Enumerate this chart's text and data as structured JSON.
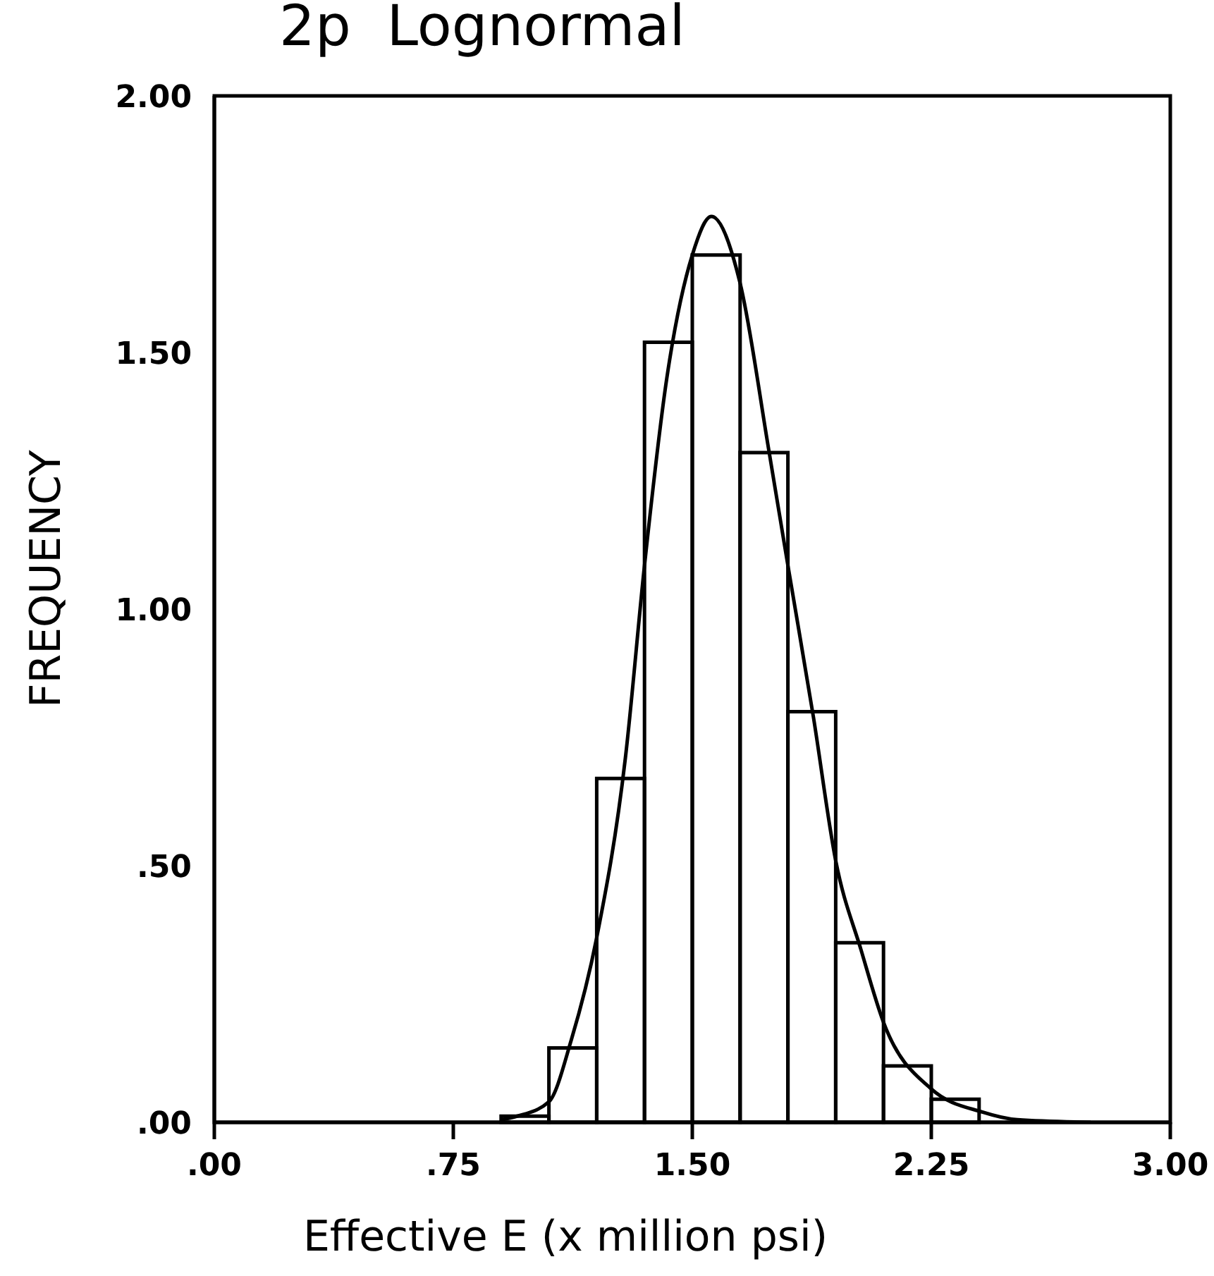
{
  "chart_data": {
    "type": "histogram",
    "title": "2p  Lognormal",
    "xlabel": "Effective  E  (x  million  psi)",
    "ylabel": "FREQUENCY",
    "bins": [
      0.9,
      1.05,
      1.2,
      1.35,
      1.5,
      1.65,
      1.8,
      1.95,
      2.1,
      2.25,
      2.4
    ],
    "values": [
      0.012,
      0.145,
      0.67,
      1.52,
      1.69,
      1.305,
      0.8,
      0.35,
      0.11,
      0.045
    ],
    "color": "#000000",
    "series": [
      {
        "type": "line",
        "color": "#000000",
        "x": [
          0.9,
          0.95,
          1.05,
          1.12,
          1.2,
          1.29,
          1.35,
          1.42,
          1.5,
          1.56,
          1.65,
          1.74,
          1.8,
          1.88,
          1.95,
          2.03,
          2.1,
          2.25,
          2.41,
          2.52,
          2.75
        ],
        "values": [
          0.005,
          0.012,
          0.04,
          0.16,
          0.36,
          0.71,
          1.085,
          1.45,
          1.69,
          1.765,
          1.635,
          1.31,
          1.085,
          0.79,
          0.51,
          0.335,
          0.195,
          0.065,
          0.02,
          0.005,
          0
        ]
      }
    ],
    "xlim": [
      0,
      3
    ],
    "xticks": [
      {
        "value": 0,
        "label": ".00"
      },
      {
        "value": 0.75,
        "label": ".75"
      },
      {
        "value": 1.5,
        "label": "1.50"
      },
      {
        "value": 2.25,
        "label": "2.25"
      },
      {
        "value": 3,
        "label": "3.00"
      }
    ],
    "ylim": [
      0,
      2
    ],
    "yticks": [
      {
        "value": 0,
        "label": ".00"
      },
      {
        "value": 0.5,
        "label": ".50"
      },
      {
        "value": 1,
        "label": "1.00"
      },
      {
        "value": 1.5,
        "label": "1.50"
      },
      {
        "value": 2,
        "label": "2.00"
      }
    ],
    "grid": false,
    "marker": "none",
    "line_style": "solid"
  }
}
